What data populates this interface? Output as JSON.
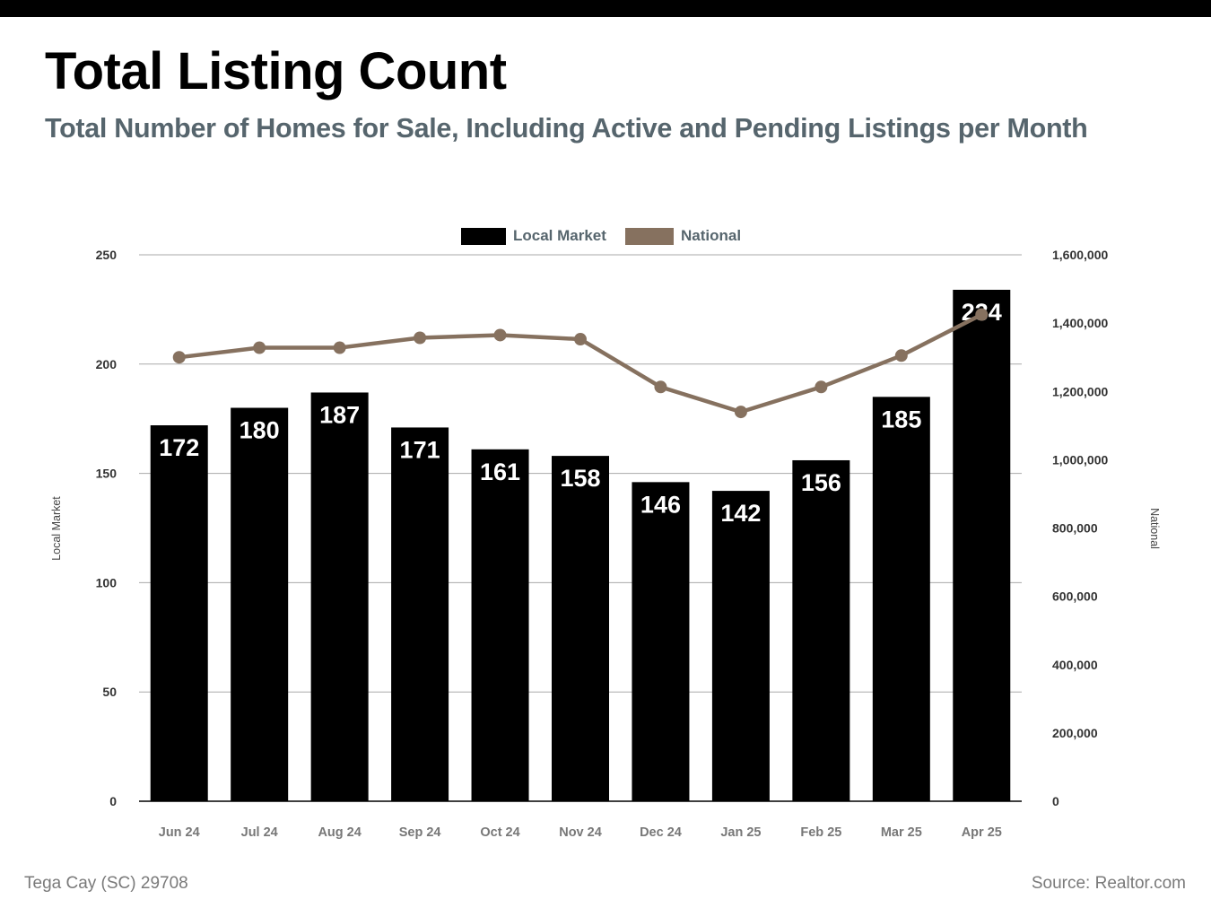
{
  "title": "Total Listing Count",
  "subtitle": "Total Number of Homes for Sale, Including Active and Pending Listings per Month",
  "footer": {
    "location": "Tega Cay (SC) 29708",
    "source": "Source: Realtor.com"
  },
  "colors": {
    "local": "#000000",
    "national": "#86715f",
    "grid": "#aaaaaa",
    "subtitle": "#56656d"
  },
  "chart_data": {
    "type": "bar",
    "title": "Total Listing Count",
    "subtitle": "Total Number of Homes for Sale, Including Active and Pending Listings per Month",
    "categories": [
      "Jun 24",
      "Jul 24",
      "Aug 24",
      "Sep 24",
      "Oct 24",
      "Nov 24",
      "Dec 24",
      "Jan 25",
      "Feb 25",
      "Mar 25",
      "Apr 25"
    ],
    "series": [
      {
        "name": "Local Market",
        "type": "bar",
        "axis": "left",
        "color": "#000000",
        "values": [
          172,
          180,
          187,
          171,
          161,
          158,
          146,
          142,
          156,
          185,
          234
        ]
      },
      {
        "name": "National",
        "type": "line",
        "axis": "right",
        "color": "#86715f",
        "values": [
          1300000,
          1328000,
          1328000,
          1357000,
          1365000,
          1353000,
          1213000,
          1140000,
          1213000,
          1305000,
          1425000
        ]
      }
    ],
    "ylabel": "Local Market",
    "y2label": "National",
    "ylim": [
      0,
      250
    ],
    "y2lim": [
      0,
      1600000
    ],
    "yticks": [
      "0",
      "50",
      "100",
      "150",
      "200",
      "250"
    ],
    "y2ticks": [
      "0",
      "200,000",
      "400,000",
      "600,000",
      "800,000",
      "1,000,000",
      "1,200,000",
      "1,400,000",
      "1,600,000"
    ],
    "legend": "top-center",
    "grid": true
  }
}
